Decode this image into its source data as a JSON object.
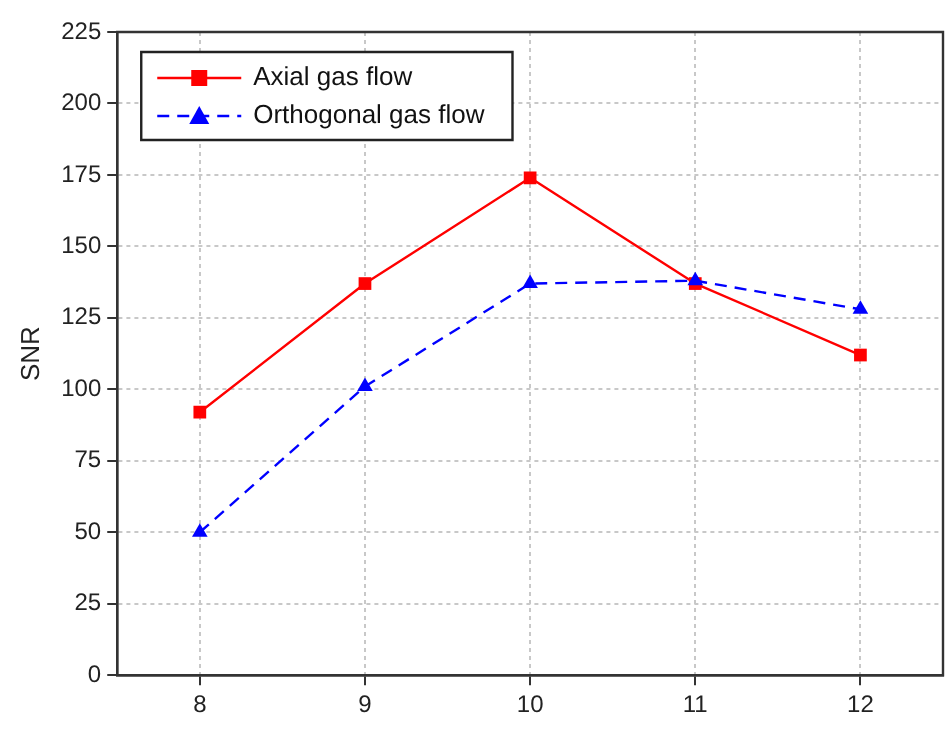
{
  "chart_data": {
    "type": "line",
    "ylabel": "SNR",
    "x": [
      8,
      9,
      10,
      11,
      12
    ],
    "xlim": [
      7.5,
      12.5
    ],
    "xticks": [
      8,
      9,
      10,
      11,
      12
    ],
    "ylim": [
      0,
      225
    ],
    "yticks": [
      0,
      25,
      50,
      75,
      100,
      125,
      150,
      175,
      200,
      225
    ],
    "grid": true,
    "legend": "top left",
    "series": [
      {
        "name": "Axial gas flow",
        "color": "#ff0000",
        "values": [
          92,
          137,
          174,
          137,
          112
        ],
        "marker": "square",
        "line_style": "solid"
      },
      {
        "name": "Orthogonal gas flow",
        "color": "#0000ff",
        "values": [
          50,
          101,
          137,
          138,
          128
        ],
        "marker": "triangle",
        "line_style": "dashed"
      }
    ]
  }
}
